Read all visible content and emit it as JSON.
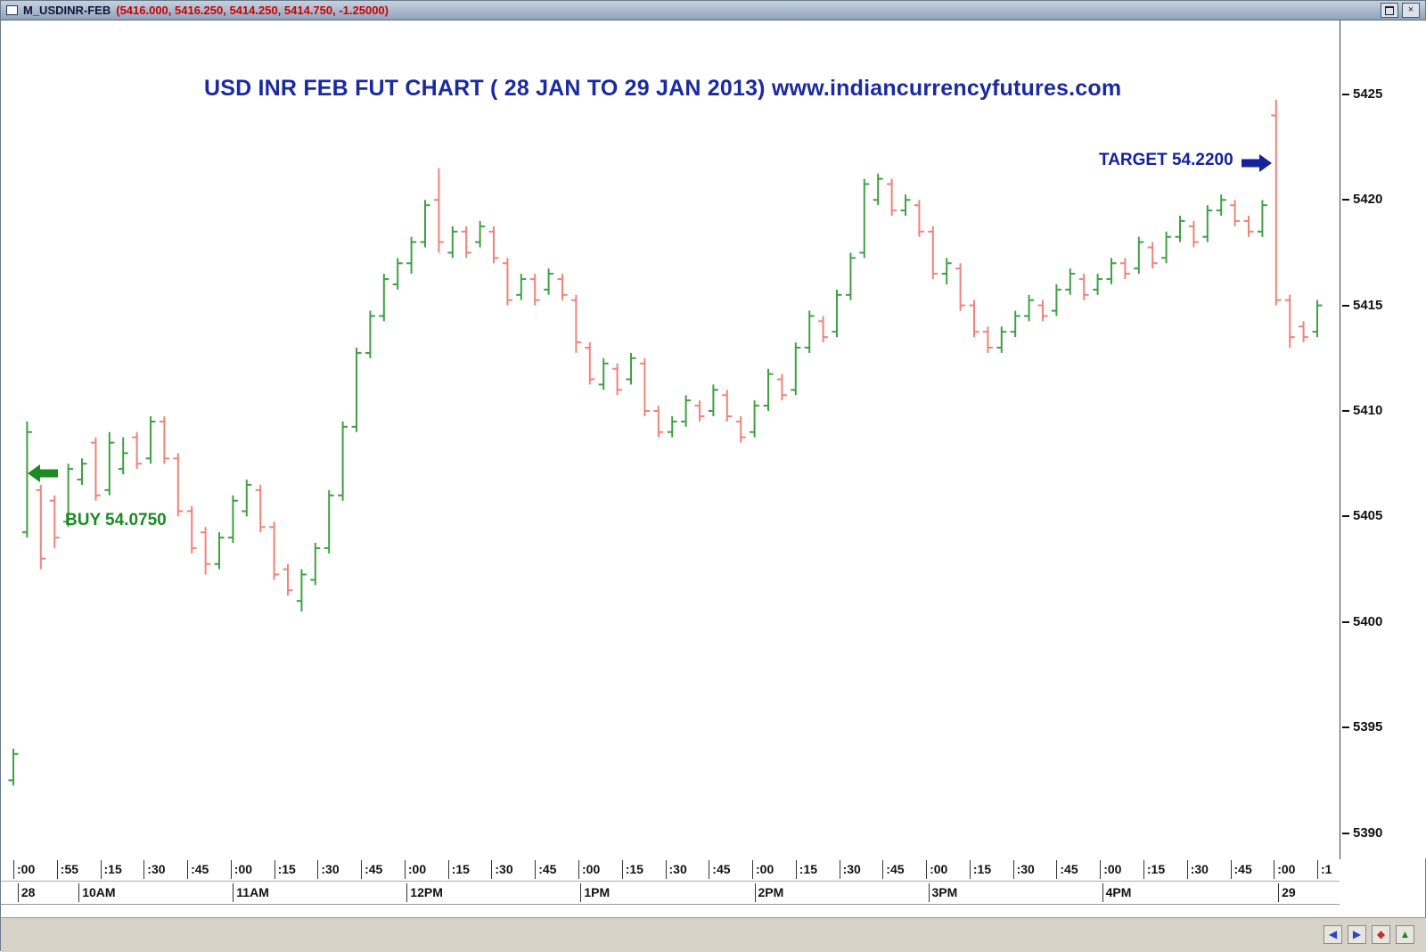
{
  "window": {
    "title": "M_USDINR-FEB",
    "quote": "(5416.000, 5416.250, 5414.250, 5414.750, -1.25000)",
    "quote_values": {
      "open": 5416.0,
      "high": 5416.25,
      "low": 5414.25,
      "close": 5414.75,
      "change": -1.25
    }
  },
  "chart_data": {
    "type": "ohlc",
    "title": "USD INR FEB FUT CHART ( 28 JAN TO 29 JAN 2013) www.indiancurrencyfutures.com",
    "title_color": "#1b2aa0",
    "xlabel": "",
    "ylabel": "",
    "grid": false,
    "legend": false,
    "up_color": "#3fa044",
    "down_color": "#ef837c",
    "y_ticks": [
      5425,
      5420,
      5415,
      5410,
      5405,
      5400,
      5395,
      5390
    ],
    "y_scale": [
      5388.8,
      5428.5
    ],
    "x_tick_labels": [
      ":00",
      ":55",
      ":15",
      ":30",
      ":45",
      ":00",
      ":15",
      ":30",
      ":45",
      ":00",
      ":15",
      ":30",
      ":45",
      ":00",
      ":15",
      ":30",
      ":45",
      ":00",
      ":15",
      ":30",
      ":45",
      ":00",
      ":15",
      ":30",
      ":45",
      ":00",
      ":15",
      ":30",
      ":45",
      ":00",
      ":1"
    ],
    "hour_labels": [
      {
        "label": "28",
        "pos": 0.1
      },
      {
        "label": "10AM",
        "pos": 1.5
      },
      {
        "label": "11AM",
        "pos": 5.05
      },
      {
        "label": "12PM",
        "pos": 9.05
      },
      {
        "label": "1PM",
        "pos": 13.05
      },
      {
        "label": "2PM",
        "pos": 17.05
      },
      {
        "label": "3PM",
        "pos": 21.05
      },
      {
        "label": "4PM",
        "pos": 25.05
      },
      {
        "label": "29",
        "pos": 29.1
      }
    ],
    "annotations": {
      "buy": {
        "label": "BUY 54.0750",
        "price": 5407.5,
        "color": "#1d8a24"
      },
      "target": {
        "label": "TARGET 54.2200",
        "price": 5422.0,
        "color": "#16219c"
      }
    },
    "bars": [
      [
        5392.5,
        5394.0,
        5392.25,
        5393.75
      ],
      [
        5404.25,
        5409.5,
        5404.0,
        5409.0
      ],
      [
        5406.25,
        5406.5,
        5402.5,
        5403.0
      ],
      [
        5405.75,
        5406.0,
        5403.5,
        5404.0
      ],
      [
        5404.75,
        5407.5,
        5404.5,
        5407.25
      ],
      [
        5406.75,
        5407.75,
        5406.5,
        5407.5
      ],
      [
        5408.5,
        5408.75,
        5405.75,
        5406.0
      ],
      [
        5406.25,
        5409.0,
        5406.0,
        5408.5
      ],
      [
        5407.25,
        5408.75,
        5407.0,
        5408.0
      ],
      [
        5408.75,
        5409.0,
        5407.25,
        5407.5
      ],
      [
        5407.75,
        5409.75,
        5407.5,
        5409.5
      ],
      [
        5409.5,
        5409.75,
        5407.5,
        5407.75
      ],
      [
        5407.75,
        5408.0,
        5405.0,
        5405.25
      ],
      [
        5405.25,
        5405.5,
        5403.25,
        5403.5
      ],
      [
        5404.25,
        5404.5,
        5402.25,
        5402.75
      ],
      [
        5402.75,
        5404.25,
        5402.5,
        5404.0
      ],
      [
        5404.0,
        5406.0,
        5403.75,
        5405.75
      ],
      [
        5405.25,
        5406.75,
        5405.0,
        5406.5
      ],
      [
        5406.25,
        5406.5,
        5404.25,
        5404.5
      ],
      [
        5404.5,
        5404.75,
        5402.0,
        5402.25
      ],
      [
        5402.5,
        5402.75,
        5401.25,
        5401.5
      ],
      [
        5401.0,
        5402.5,
        5400.5,
        5402.25
      ],
      [
        5402.0,
        5403.75,
        5401.75,
        5403.5
      ],
      [
        5403.5,
        5406.25,
        5403.25,
        5406.0
      ],
      [
        5406.0,
        5409.5,
        5405.75,
        5409.25
      ],
      [
        5409.25,
        5413.0,
        5409.0,
        5412.75
      ],
      [
        5412.75,
        5414.75,
        5412.5,
        5414.5
      ],
      [
        5414.5,
        5416.5,
        5414.25,
        5416.25
      ],
      [
        5416.0,
        5417.25,
        5415.75,
        5417.0
      ],
      [
        5417.0,
        5418.25,
        5416.5,
        5418.0
      ],
      [
        5418.0,
        5420.0,
        5417.75,
        5419.75
      ],
      [
        5420.0,
        5421.5,
        5417.5,
        5418.0
      ],
      [
        5417.5,
        5418.75,
        5417.25,
        5418.5
      ],
      [
        5418.5,
        5418.75,
        5417.25,
        5417.5
      ],
      [
        5418.0,
        5419.0,
        5417.75,
        5418.75
      ],
      [
        5418.5,
        5418.75,
        5417.0,
        5417.25
      ],
      [
        5417.0,
        5417.25,
        5415.0,
        5415.25
      ],
      [
        5415.5,
        5416.5,
        5415.25,
        5416.25
      ],
      [
        5416.25,
        5416.5,
        5415.0,
        5415.25
      ],
      [
        5415.75,
        5416.75,
        5415.5,
        5416.5
      ],
      [
        5416.25,
        5416.5,
        5415.25,
        5415.5
      ],
      [
        5415.25,
        5415.5,
        5412.75,
        5413.25
      ],
      [
        5413.0,
        5413.25,
        5411.25,
        5411.5
      ],
      [
        5411.25,
        5412.5,
        5411.0,
        5412.25
      ],
      [
        5412.0,
        5412.25,
        5410.75,
        5411.0
      ],
      [
        5411.5,
        5412.75,
        5411.25,
        5412.5
      ],
      [
        5412.25,
        5412.5,
        5409.75,
        5410.0
      ],
      [
        5410.0,
        5410.25,
        5408.75,
        5409.0
      ],
      [
        5409.0,
        5409.75,
        5408.75,
        5409.5
      ],
      [
        5409.5,
        5410.75,
        5409.25,
        5410.5
      ],
      [
        5410.25,
        5410.5,
        5409.5,
        5409.75
      ],
      [
        5410.0,
        5411.25,
        5409.75,
        5411.0
      ],
      [
        5410.75,
        5411.0,
        5409.5,
        5409.75
      ],
      [
        5409.5,
        5409.75,
        5408.5,
        5408.75
      ],
      [
        5409.0,
        5410.5,
        5408.75,
        5410.25
      ],
      [
        5410.25,
        5412.0,
        5410.0,
        5411.75
      ],
      [
        5411.5,
        5411.75,
        5410.5,
        5410.75
      ],
      [
        5411.0,
        5413.25,
        5410.75,
        5413.0
      ],
      [
        5413.0,
        5414.75,
        5412.75,
        5414.5
      ],
      [
        5414.25,
        5414.5,
        5413.25,
        5413.5
      ],
      [
        5413.75,
        5415.75,
        5413.5,
        5415.5
      ],
      [
        5415.5,
        5417.5,
        5415.25,
        5417.25
      ],
      [
        5417.5,
        5421.0,
        5417.25,
        5420.75
      ],
      [
        5420.0,
        5421.25,
        5419.75,
        5421.0
      ],
      [
        5420.75,
        5421.0,
        5419.25,
        5419.5
      ],
      [
        5419.5,
        5420.25,
        5419.25,
        5420.0
      ],
      [
        5419.75,
        5420.0,
        5418.25,
        5418.5
      ],
      [
        5418.5,
        5418.75,
        5416.25,
        5416.5
      ],
      [
        5416.5,
        5417.25,
        5416.0,
        5417.0
      ],
      [
        5416.75,
        5417.0,
        5414.75,
        5415.0
      ],
      [
        5415.0,
        5415.25,
        5413.5,
        5413.75
      ],
      [
        5413.75,
        5414.0,
        5412.75,
        5413.0
      ],
      [
        5413.0,
        5414.0,
        5412.75,
        5413.75
      ],
      [
        5413.75,
        5414.75,
        5413.5,
        5414.5
      ],
      [
        5414.5,
        5415.5,
        5414.25,
        5415.25
      ],
      [
        5415.0,
        5415.25,
        5414.25,
        5414.5
      ],
      [
        5414.75,
        5416.0,
        5414.5,
        5415.75
      ],
      [
        5415.75,
        5416.75,
        5415.5,
        5416.5
      ],
      [
        5416.25,
        5416.5,
        5415.25,
        5415.5
      ],
      [
        5415.75,
        5416.5,
        5415.5,
        5416.25
      ],
      [
        5416.25,
        5417.25,
        5416.0,
        5417.0
      ],
      [
        5417.0,
        5417.25,
        5416.25,
        5416.5
      ],
      [
        5416.75,
        5418.25,
        5416.5,
        5418.0
      ],
      [
        5417.75,
        5418.0,
        5416.75,
        5417.0
      ],
      [
        5417.25,
        5418.5,
        5417.0,
        5418.25
      ],
      [
        5418.25,
        5419.25,
        5418.0,
        5419.0
      ],
      [
        5418.75,
        5419.0,
        5417.75,
        5418.0
      ],
      [
        5418.25,
        5419.75,
        5418.0,
        5419.5
      ],
      [
        5419.5,
        5420.25,
        5419.25,
        5420.0
      ],
      [
        5419.75,
        5420.0,
        5418.75,
        5419.0
      ],
      [
        5419.0,
        5419.25,
        5418.25,
        5418.5
      ],
      [
        5418.5,
        5420.0,
        5418.25,
        5419.75
      ],
      [
        5424.0,
        5424.75,
        5415.0,
        5415.25
      ],
      [
        5415.25,
        5415.5,
        5413.0,
        5413.5
      ],
      [
        5414.0,
        5414.25,
        5413.25,
        5413.5
      ],
      [
        5413.75,
        5415.25,
        5413.5,
        5415.0
      ]
    ]
  },
  "bottom_toolbar": {
    "icons": [
      {
        "name": "nav-left-icon",
        "glyph": "◀",
        "color": "#2a46c8"
      },
      {
        "name": "nav-right-icon",
        "glyph": "▶",
        "color": "#2a46c8"
      },
      {
        "name": "nav-marker-icon",
        "glyph": "◆",
        "color": "#c03030"
      },
      {
        "name": "nav-up-icon",
        "glyph": "▲",
        "color": "#1d8a24"
      }
    ]
  }
}
